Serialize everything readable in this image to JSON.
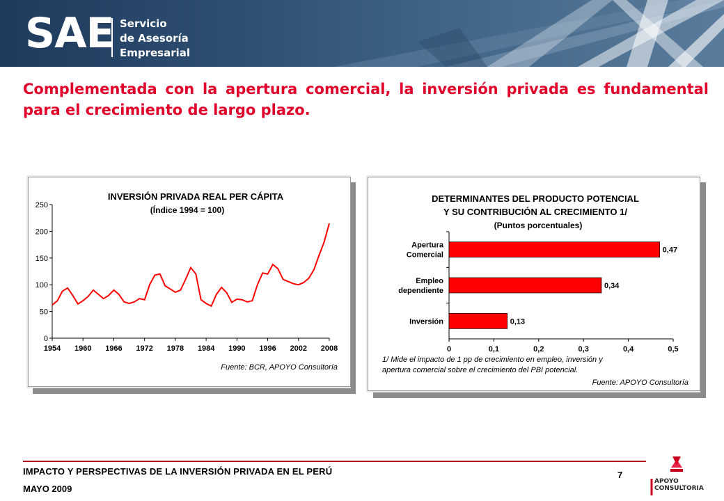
{
  "header": {
    "logo_main": "SAE",
    "logo_line1": "Servicio",
    "logo_line2": "de Asesoría",
    "logo_line3": "Empresarial"
  },
  "slide": {
    "title": "Complementada con la apertura comercial, la inversión privada es fundamental para el crecimiento de largo plazo."
  },
  "left_chart": {
    "title": "INVERSIÓN PRIVADA REAL PER CÁPITA",
    "subtitle": "(Índice 1994 = 100)",
    "source": "Fuente: BCR, APOYO Consultoría"
  },
  "right_chart": {
    "title_line1": "DETERMINANTES DEL PRODUCTO POTENCIAL",
    "title_line2": "Y SU CONTRIBUCIÓN AL CRECIMIENTO 1/",
    "subtitle": "(Puntos porcentuales)",
    "note_line1": "1/ Mide el impacto de 1 pp de crecimiento en empleo, inversión y",
    "note_line2": "apertura comercial sobre el crecimiento del PBI potencial.",
    "source": "Fuente: APOYO Consultoría"
  },
  "chart_data": [
    {
      "type": "line",
      "title": "INVERSIÓN PRIVADA REAL PER CÁPITA",
      "subtitle": "(Índice 1994 = 100)",
      "line_color": "#ff0000",
      "x_ticks": [
        "1954",
        "1960",
        "1966",
        "1972",
        "1978",
        "1984",
        "1990",
        "1996",
        "2002",
        "2008"
      ],
      "y_ticks": [
        "0",
        "50",
        "100",
        "150",
        "200",
        "250"
      ],
      "xlim": [
        1954,
        2008
      ],
      "ylim": [
        0,
        250
      ],
      "x": [
        1954,
        1955,
        1956,
        1957,
        1958,
        1959,
        1960,
        1961,
        1962,
        1963,
        1964,
        1965,
        1966,
        1967,
        1968,
        1969,
        1970,
        1971,
        1972,
        1973,
        1974,
        1975,
        1976,
        1977,
        1978,
        1979,
        1980,
        1981,
        1982,
        1983,
        1984,
        1985,
        1986,
        1987,
        1988,
        1989,
        1990,
        1991,
        1992,
        1993,
        1994,
        1995,
        1996,
        1997,
        1998,
        1999,
        2000,
        2001,
        2002,
        2003,
        2004,
        2005,
        2006,
        2007,
        2008
      ],
      "y": [
        62,
        70,
        88,
        94,
        80,
        64,
        70,
        78,
        90,
        82,
        74,
        80,
        90,
        82,
        68,
        65,
        68,
        74,
        72,
        100,
        118,
        120,
        98,
        92,
        86,
        90,
        110,
        132,
        120,
        72,
        65,
        60,
        82,
        95,
        85,
        67,
        73,
        72,
        68,
        70,
        100,
        122,
        120,
        138,
        130,
        110,
        106,
        102,
        100,
        104,
        112,
        128,
        155,
        180,
        215
      ]
    },
    {
      "type": "bar",
      "orientation": "horizontal",
      "title": "DETERMINANTES DEL PRODUCTO POTENCIAL Y SU CONTRIBUCIÓN AL CRECIMIENTO 1/",
      "subtitle": "(Puntos porcentuales)",
      "bar_color": "#ff0000",
      "categories": [
        [
          "Apertura",
          "Comercial"
        ],
        [
          "Empleo",
          "dependiente"
        ],
        [
          "Inversión"
        ]
      ],
      "values": [
        0.47,
        0.34,
        0.13
      ],
      "value_labels": [
        "0,47",
        "0,34",
        "0,13"
      ],
      "x_ticks": [
        "0",
        "0,1",
        "0,2",
        "0,3",
        "0,4",
        "0,5"
      ],
      "xlim": [
        0,
        0.5
      ]
    }
  ],
  "footer": {
    "line1": "IMPACTO Y PERSPECTIVAS DE LA INVERSIÓN PRIVADA EN EL PERÚ",
    "line2": "MAYO 2009",
    "page_number": "7",
    "logo_line1": "APOYO",
    "logo_line2": "CONSULTORIA"
  }
}
